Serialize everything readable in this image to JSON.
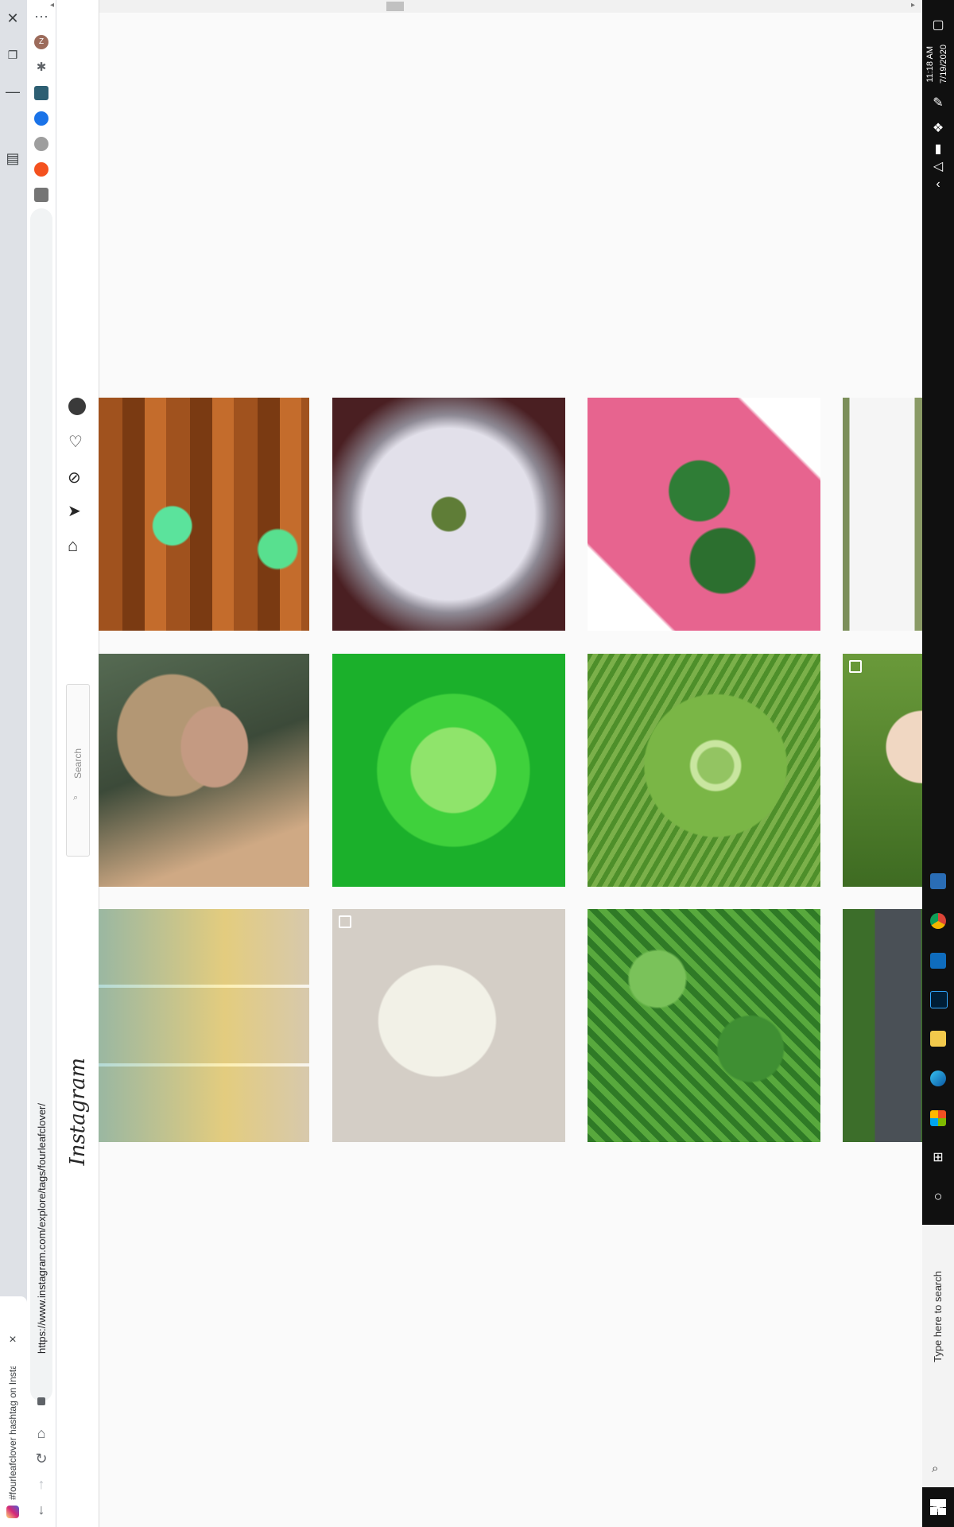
{
  "browser": {
    "tab_title": "#fourleafclover hashtag on Insta...",
    "url": "https://www.instagram.com/explore/tags/fourleafclover/",
    "new_tab_label": "+",
    "tab_close_label": "×",
    "avatar_initial": "Z"
  },
  "instagram": {
    "logo": "Instagram",
    "search_placeholder": "Search"
  },
  "taskbar": {
    "time": "11:18 AM",
    "date": "7/19/2020",
    "search_placeholder": "Type here to search"
  },
  "colors": {
    "accent": "#0095f6",
    "taskbar": "#101010"
  }
}
